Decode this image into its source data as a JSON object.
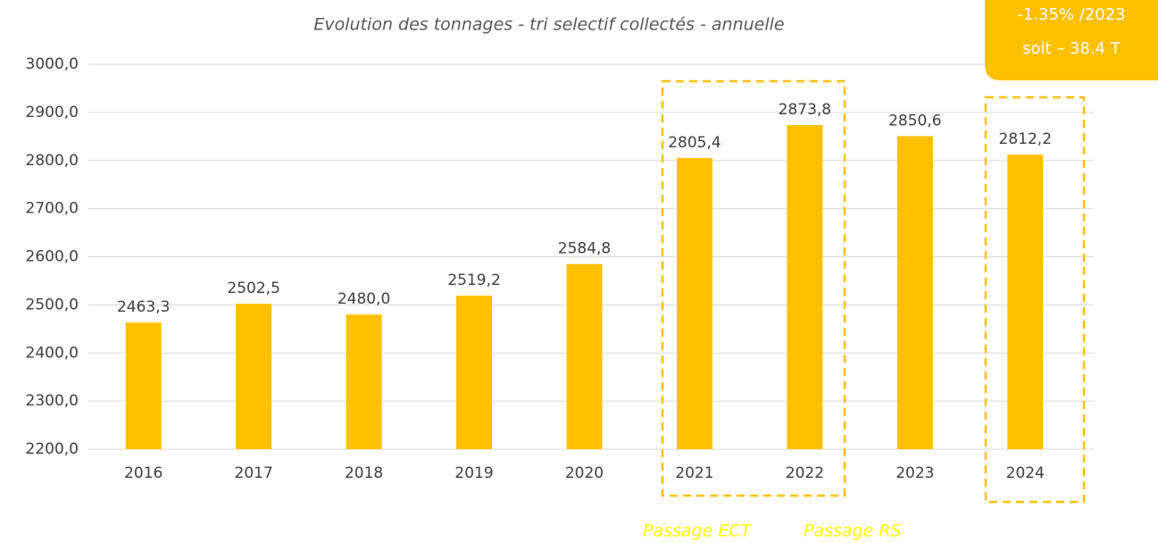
{
  "chart_data": {
    "type": "bar",
    "title": "Evolution des tonnages - tri selectif collectés - annuelle",
    "categories": [
      "2016",
      "2017",
      "2018",
      "2019",
      "2020",
      "2021",
      "2022",
      "2023",
      "2024"
    ],
    "values": [
      2463.3,
      2502.5,
      2480.0,
      2519.2,
      2584.8,
      2805.4,
      2873.8,
      2850.6,
      2812.2
    ],
    "value_labels": [
      "2463,3",
      "2502,5",
      "2480,0",
      "2519,2",
      "2584,8",
      "2805,4",
      "2873,8",
      "2850,6",
      "2812,2"
    ],
    "color": "#ffc000",
    "ylim": [
      2200,
      3000
    ],
    "yticks": [
      {
        "value": 2200,
        "label": "2200,0"
      },
      {
        "value": 2300,
        "label": "2300,0"
      },
      {
        "value": 2400,
        "label": "2400,0"
      },
      {
        "value": 2500,
        "label": "2500,0"
      },
      {
        "value": 2600,
        "label": "2600,0"
      },
      {
        "value": 2700,
        "label": "2700,0"
      },
      {
        "value": 2800,
        "label": "2800,0"
      },
      {
        "value": 2900,
        "label": "2900,0"
      },
      {
        "value": 3000,
        "label": "3000,0"
      }
    ],
    "grid": true,
    "annotations": {
      "callout": [
        "-1.35% /2023",
        "soit – 38.4 T"
      ],
      "notes": [
        "Passage ECT",
        "Passage RS"
      ]
    }
  }
}
